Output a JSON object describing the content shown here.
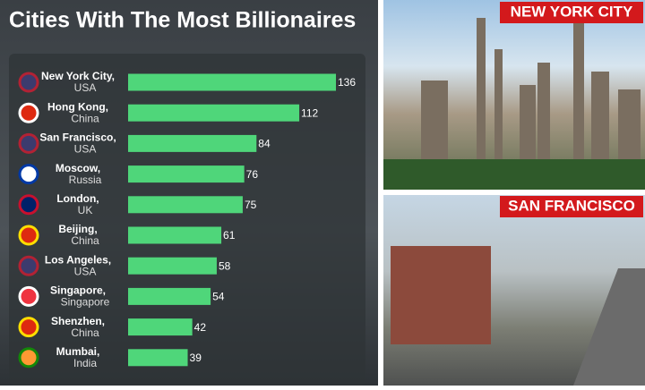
{
  "chart_data": {
    "type": "bar",
    "orientation": "horizontal",
    "title": "Cities With The Most Billionaires",
    "categories": [
      "New York City,",
      "Hong Kong,",
      "San Francisco,",
      "Moscow,",
      "London,",
      "Beijing,",
      "Los Angeles,",
      "Singapore,",
      "Shenzhen,",
      "Mumbai,"
    ],
    "countries": [
      "USA",
      "China",
      "USA",
      "Russia",
      "UK",
      "China",
      "USA",
      "Singapore",
      "China",
      "India"
    ],
    "values": [
      136,
      112,
      84,
      76,
      75,
      61,
      58,
      54,
      42,
      39
    ],
    "color": "#4fd67a"
  },
  "photo_labels": [
    "NEW YORK CITY",
    "SAN FRANCISCO"
  ]
}
